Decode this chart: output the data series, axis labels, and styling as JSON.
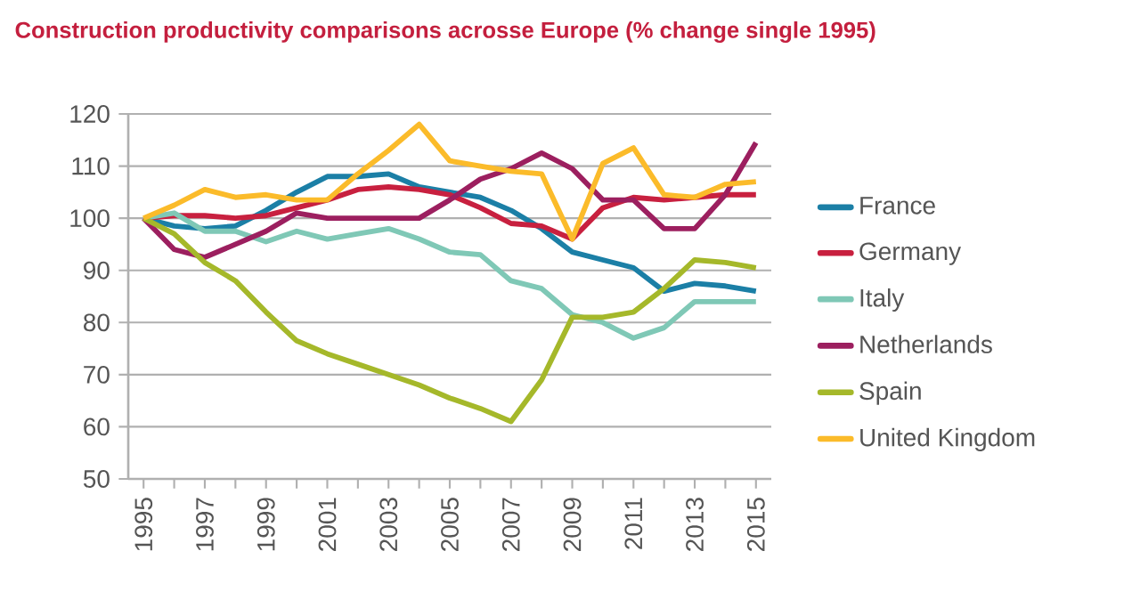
{
  "chart_data": {
    "type": "line",
    "title": "Construction productivity comparisons acrosse Europe (% change single 1995)",
    "x": [
      1995,
      1996,
      1997,
      1998,
      1999,
      2000,
      2001,
      2002,
      2003,
      2004,
      2005,
      2006,
      2007,
      2008,
      2009,
      2010,
      2011,
      2012,
      2013,
      2014,
      2015
    ],
    "series": [
      {
        "name": "France",
        "color": "#1b7fa6",
        "values": [
          100,
          98.5,
          98,
          98.5,
          101.5,
          105,
          108,
          108,
          108.5,
          106,
          105,
          104,
          101.5,
          98,
          93.5,
          92,
          90.5,
          86,
          87.5,
          87,
          86
        ]
      },
      {
        "name": "Germany",
        "color": "#c8203f",
        "values": [
          100,
          100.5,
          100.5,
          100,
          100.5,
          102,
          103.5,
          105.5,
          106,
          105.5,
          104.5,
          102,
          99,
          98.5,
          96,
          102,
          104,
          103.5,
          104,
          104.5,
          104.5
        ]
      },
      {
        "name": "Italy",
        "color": "#7fc8b6",
        "values": [
          100,
          101,
          97.5,
          97.5,
          95.5,
          97.5,
          96,
          97,
          98,
          96,
          93.5,
          93,
          88,
          86.5,
          81.5,
          80,
          77,
          79,
          84,
          84,
          84
        ]
      },
      {
        "name": "Netherlands",
        "color": "#9c1f5f",
        "values": [
          100,
          94,
          92.5,
          95,
          97.5,
          101,
          100,
          100,
          100,
          100,
          103.5,
          107.5,
          109.5,
          112.5,
          109.5,
          103.5,
          103.5,
          98,
          98,
          104.5,
          114.5
        ]
      },
      {
        "name": "Spain",
        "color": "#a5b82a",
        "values": [
          100,
          97,
          91.5,
          88,
          82,
          76.5,
          74,
          72,
          70,
          68,
          65.5,
          63.5,
          61,
          69,
          81,
          81,
          82,
          86.5,
          92,
          91.5,
          90.5
        ]
      },
      {
        "name": "United Kingdom",
        "color": "#fbbb2a",
        "values": [
          100,
          102.5,
          105.5,
          104,
          104.5,
          103.5,
          103.5,
          108.5,
          113,
          118,
          111,
          110,
          109,
          108.5,
          96,
          110.5,
          113.5,
          104.5,
          104,
          106.5,
          107
        ]
      }
    ],
    "xlim": [
      1994.5,
      2015.5
    ],
    "xticks": [
      1995,
      {
        "value": 1996,
        "label": null
      },
      1997,
      {
        "value": 1998,
        "label": null
      },
      1999,
      {
        "value": 2000,
        "label": null
      },
      2001,
      {
        "value": 2002,
        "label": null
      },
      2003,
      {
        "value": 2004,
        "label": null
      },
      2005,
      {
        "value": 2006,
        "label": null
      },
      2007,
      {
        "value": 2008,
        "label": null
      },
      2009,
      {
        "value": 2010,
        "label": null
      },
      2011,
      {
        "value": 2012,
        "label": null
      },
      2013,
      {
        "value": 2014,
        "label": null
      },
      2015
    ],
    "ylim": [
      50,
      120
    ],
    "yticks": [
      50,
      60,
      70,
      80,
      90,
      100,
      110,
      120
    ],
    "grid": "y",
    "legend": "right",
    "line_style": "solid"
  }
}
